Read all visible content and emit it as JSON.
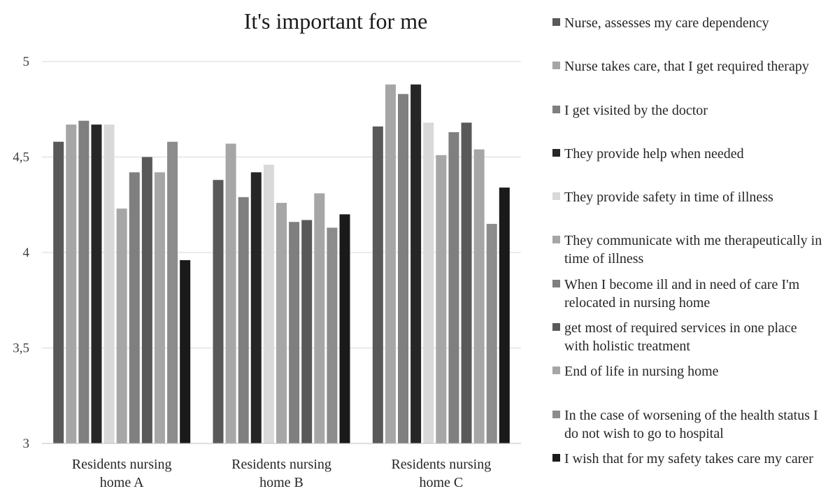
{
  "chart_data": {
    "type": "bar",
    "title": "It's important for me",
    "xlabel": "",
    "ylabel": "",
    "ylim": [
      3,
      5
    ],
    "yticks": [
      "3",
      "3,5",
      "4",
      "4,5",
      "5"
    ],
    "ytick_values": [
      3,
      3.5,
      4,
      4.5,
      5
    ],
    "grid": true,
    "legend_position": "right",
    "categories": [
      "Residents nursing home A",
      "Residents nursing home B",
      "Residents nursing home C"
    ],
    "series": [
      {
        "name": "Nurse, assesses my care dependency",
        "color": "#595959",
        "values": [
          4.58,
          4.38,
          4.66
        ]
      },
      {
        "name": "Nurse takes care, that I get required therapy",
        "color": "#a6a6a6",
        "values": [
          4.67,
          4.57,
          4.88
        ]
      },
      {
        "name": "I get visited by the doctor",
        "color": "#7f7f7f",
        "values": [
          4.69,
          4.29,
          4.83
        ]
      },
      {
        "name": "They provide help when needed",
        "color": "#262626",
        "values": [
          4.67,
          4.42,
          4.88
        ]
      },
      {
        "name": "They provide safety in time of illness",
        "color": "#d9d9d9",
        "values": [
          4.67,
          4.46,
          4.68
        ]
      },
      {
        "name": "They communicate with me therapeutically in time of illness",
        "color": "#a6a6a6",
        "values": [
          4.23,
          4.26,
          4.51
        ]
      },
      {
        "name": "When I become ill and in need of care I'm relocated in nursing home",
        "color": "#7f7f7f",
        "values": [
          4.42,
          4.16,
          4.63
        ]
      },
      {
        "name": " get most of required services in one place with holistic treatment",
        "color": "#595959",
        "values": [
          4.5,
          4.17,
          4.68
        ]
      },
      {
        "name": "End of life in nursing home",
        "color": "#a6a6a6",
        "values": [
          4.42,
          4.31,
          4.54
        ]
      },
      {
        "name": "In the case of worsening of the health status I do not wish to go to hospital",
        "color": "#8c8c8c",
        "values": [
          4.58,
          4.13,
          4.15
        ]
      },
      {
        "name": "I wish that for my safety takes care my carer",
        "color": "#1a1a1a",
        "values": [
          3.96,
          4.2,
          4.34
        ]
      }
    ]
  }
}
